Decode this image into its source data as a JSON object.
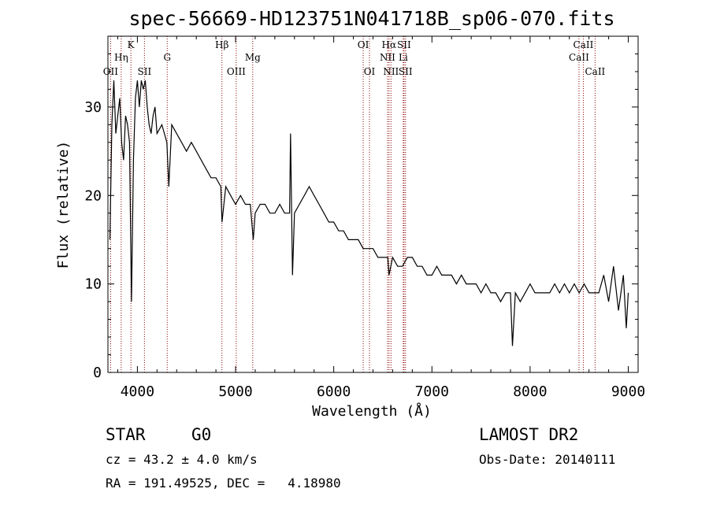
{
  "chart_data": {
    "type": "line",
    "title": "spec-56669-HD123751N041718B_sp06-070.fits",
    "xlabel": "Wavelength (Å)",
    "ylabel": "Flux (relative)",
    "xlim": [
      3700,
      9100
    ],
    "ylim": [
      0,
      38
    ],
    "x_ticks": [
      4000,
      5000,
      6000,
      7000,
      8000,
      9000
    ],
    "y_ticks": [
      0,
      10,
      20,
      30
    ],
    "grid": false,
    "legend": "none",
    "line_color": "#000000",
    "marker_color": "#8b0000",
    "series": [
      {
        "x": [
          3720,
          3740,
          3760,
          3780,
          3800,
          3820,
          3840,
          3860,
          3880,
          3900,
          3920,
          3940,
          3960,
          3980,
          4000,
          4020,
          4040,
          4060,
          4080,
          4100,
          4120,
          4140,
          4160,
          4180,
          4200,
          4250,
          4300,
          4320,
          4350,
          4400,
          4450,
          4500,
          4550,
          4600,
          4650,
          4700,
          4750,
          4800,
          4850,
          4862,
          4900,
          4950,
          5000,
          5050,
          5100,
          5150,
          5180,
          5200,
          5250,
          5300,
          5350,
          5400,
          5450,
          5500,
          5550,
          5560,
          5580,
          5600,
          5650,
          5700,
          5750,
          5800,
          5850,
          5900,
          5950,
          6000,
          6050,
          6100,
          6150,
          6200,
          6250,
          6300,
          6350,
          6400,
          6450,
          6500,
          6550,
          6563,
          6600,
          6650,
          6700,
          6750,
          6800,
          6850,
          6900,
          6950,
          7000,
          7050,
          7100,
          7150,
          7200,
          7250,
          7300,
          7350,
          7400,
          7450,
          7500,
          7550,
          7600,
          7650,
          7700,
          7750,
          7800,
          7820,
          7850,
          7900,
          7950,
          8000,
          8050,
          8100,
          8150,
          8200,
          8250,
          8300,
          8350,
          8400,
          8450,
          8500,
          8550,
          8600,
          8650,
          8700,
          8750,
          8800,
          8850,
          8900,
          8950,
          8980,
          9000
        ],
        "y": [
          15,
          28,
          33,
          27,
          29,
          31,
          26,
          24,
          29,
          28,
          26,
          8,
          24,
          31,
          33,
          30,
          33,
          32,
          33,
          30,
          28,
          27,
          29,
          30,
          27,
          28,
          26,
          21,
          28,
          27,
          26,
          25,
          26,
          25,
          24,
          23,
          22,
          22,
          21,
          17,
          21,
          20,
          19,
          20,
          19,
          19,
          15,
          18,
          19,
          19,
          18,
          18,
          19,
          18,
          18,
          27,
          11,
          18,
          19,
          20,
          21,
          20,
          19,
          18,
          17,
          17,
          16,
          16,
          15,
          15,
          15,
          14,
          14,
          14,
          13,
          13,
          13,
          11,
          13,
          12,
          12,
          13,
          13,
          12,
          12,
          11,
          11,
          12,
          11,
          11,
          11,
          10,
          11,
          10,
          10,
          10,
          9,
          10,
          9,
          9,
          8,
          9,
          9,
          3,
          9,
          8,
          9,
          10,
          9,
          9,
          9,
          9,
          10,
          9,
          10,
          9,
          10,
          9,
          10,
          9,
          9,
          9,
          11,
          8,
          12,
          7,
          11,
          5,
          9
        ]
      }
    ],
    "spectral_lines": [
      {
        "label": "OII",
        "x": 3727,
        "row": 3
      },
      {
        "label": "Hη",
        "x": 3835,
        "row": 2
      },
      {
        "label": "K",
        "x": 3934,
        "row": 1
      },
      {
        "label": "SII",
        "x": 4072,
        "row": 3
      },
      {
        "label": "G",
        "x": 4304,
        "row": 2
      },
      {
        "label": "Hβ",
        "x": 4861,
        "row": 1
      },
      {
        "label": "OIII",
        "x": 5007,
        "row": 3
      },
      {
        "label": "Mg",
        "x": 5175,
        "row": 2
      },
      {
        "label": "OI",
        "x": 6300,
        "row": 1
      },
      {
        "label": "OI",
        "x": 6364,
        "row": 3
      },
      {
        "label": "Hα",
        "x": 6563,
        "row": 1
      },
      {
        "label": "NII",
        "x": 6548,
        "row": 2
      },
      {
        "label": "NII",
        "x": 6583,
        "row": 3
      },
      {
        "label": "SII",
        "x": 6716,
        "row": 1
      },
      {
        "label": "Li",
        "x": 6708,
        "row": 2
      },
      {
        "label": "SII",
        "x": 6731,
        "row": 3
      },
      {
        "label": "CaII",
        "x": 8498,
        "row": 2
      },
      {
        "label": "CaII",
        "x": 8542,
        "row": 1
      },
      {
        "label": "CaII",
        "x": 8662,
        "row": 3
      }
    ]
  },
  "footer": {
    "class_label": "STAR",
    "subclass": "G0",
    "survey": "LAMOST DR2",
    "cz": "cz = 43.2 ± 4.0 km/s",
    "obs_date": "Obs-Date: 20140111",
    "coords": "RA = 191.49525, DEC =   4.18980"
  }
}
